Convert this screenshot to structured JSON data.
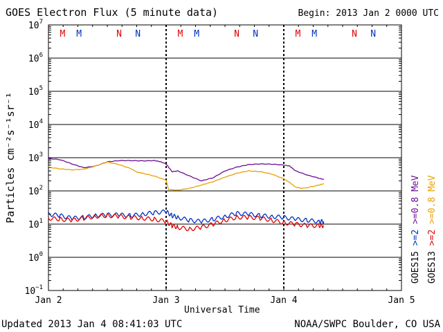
{
  "chart_data": {
    "type": "line",
    "title": "GOES Electron Flux (5 minute data)",
    "begin_label": "Begin: 2013 Jan 2 0000 UTC",
    "xlabel": "Universal Time",
    "ylabel": "Particles cm⁻²s⁻¹sr⁻¹",
    "yscale": "log",
    "ylim_exp": [
      -1,
      7
    ],
    "ytick_exps": [
      7,
      6,
      5,
      4,
      3,
      2,
      1,
      0,
      -1
    ],
    "xlim_days": [
      0,
      3
    ],
    "xticks": [
      {
        "day": 0,
        "label": "Jan 2"
      },
      {
        "day": 1,
        "label": "Jan 3"
      },
      {
        "day": 2,
        "label": "Jan 4"
      },
      {
        "day": 3,
        "label": "Jan 5"
      }
    ],
    "threshold": 1000,
    "markers": [
      {
        "day": 0.12,
        "label": "M",
        "color": "#e00000"
      },
      {
        "day": 0.26,
        "label": "M",
        "color": "#0030c0"
      },
      {
        "day": 0.6,
        "label": "N",
        "color": "#e00000"
      },
      {
        "day": 0.76,
        "label": "N",
        "color": "#0030c0"
      },
      {
        "day": 1.12,
        "label": "M",
        "color": "#e00000"
      },
      {
        "day": 1.26,
        "label": "M",
        "color": "#0030c0"
      },
      {
        "day": 1.6,
        "label": "N",
        "color": "#e00000"
      },
      {
        "day": 1.76,
        "label": "N",
        "color": "#0030c0"
      },
      {
        "day": 2.12,
        "label": "M",
        "color": "#e00000"
      },
      {
        "day": 2.26,
        "label": "M",
        "color": "#0030c0"
      },
      {
        "day": 2.6,
        "label": "N",
        "color": "#e00000"
      },
      {
        "day": 2.76,
        "label": "N",
        "color": "#0030c0"
      }
    ],
    "legend": [
      {
        "text": "GOES15",
        "color": "#000000"
      },
      {
        "text": ">=2",
        "color": "#0030c0"
      },
      {
        "text": ">=0.8 MeV",
        "color": "#6a0d91"
      },
      {
        "text": "GOES13",
        "color": "#000000"
      },
      {
        "text": ">=2",
        "color": "#e00000"
      },
      {
        "text": ">=0.8 MeV",
        "color": "#e8a000"
      }
    ],
    "legend_placement": "right",
    "series": [
      {
        "name": "GOES15 >=0.8 MeV",
        "color": "#6a0d91",
        "x": [
          0,
          0.1,
          0.2,
          0.3,
          0.4,
          0.5,
          0.6,
          0.7,
          0.8,
          0.9,
          0.95,
          1.0,
          1.05,
          1.1,
          1.2,
          1.3,
          1.4,
          1.5,
          1.6,
          1.7,
          1.8,
          1.9,
          2.0,
          2.05,
          2.1,
          2.2,
          2.3,
          2.34
        ],
        "y": [
          950,
          870,
          650,
          500,
          560,
          750,
          820,
          820,
          800,
          820,
          760,
          650,
          380,
          400,
          280,
          200,
          250,
          400,
          520,
          620,
          650,
          640,
          600,
          560,
          400,
          300,
          240,
          220
        ]
      },
      {
        "name": "GOES13 >=0.8 MeV",
        "color": "#e8a000",
        "x": [
          0,
          0.1,
          0.2,
          0.3,
          0.4,
          0.5,
          0.6,
          0.7,
          0.75,
          0.8,
          0.9,
          1.0,
          1.02,
          1.1,
          1.2,
          1.3,
          1.4,
          1.5,
          1.6,
          1.7,
          1.8,
          1.9,
          2.0,
          2.05,
          2.1,
          2.15,
          2.2,
          2.3,
          2.34
        ],
        "y": [
          520,
          460,
          430,
          450,
          560,
          740,
          620,
          470,
          370,
          340,
          280,
          210,
          110,
          105,
          120,
          150,
          190,
          260,
          340,
          400,
          380,
          320,
          230,
          180,
          130,
          120,
          125,
          150,
          165
        ]
      },
      {
        "name": "GOES15 >=2 MeV",
        "color": "#0030c0",
        "x": [
          0,
          0.1,
          0.2,
          0.3,
          0.4,
          0.5,
          0.6,
          0.7,
          0.8,
          0.9,
          1.0,
          1.05,
          1.1,
          1.2,
          1.3,
          1.4,
          1.5,
          1.6,
          1.7,
          1.8,
          1.9,
          2.0,
          2.1,
          2.2,
          2.3,
          2.34
        ],
        "y": [
          20,
          18,
          15,
          16,
          18,
          19,
          19,
          18,
          20,
          22,
          24,
          18,
          16,
          13,
          12,
          14,
          17,
          21,
          20,
          18,
          17,
          16,
          14,
          13,
          12,
          12
        ]
      },
      {
        "name": "GOES13 >=2 MeV",
        "color": "#e00000",
        "x": [
          0,
          0.1,
          0.2,
          0.3,
          0.4,
          0.5,
          0.6,
          0.7,
          0.8,
          0.9,
          1.0,
          1.05,
          1.1,
          1.2,
          1.3,
          1.4,
          1.5,
          1.6,
          1.7,
          1.8,
          1.9,
          2.0,
          2.1,
          2.2,
          2.3,
          2.34
        ],
        "y": [
          15,
          14,
          13,
          15,
          17,
          18,
          17,
          16,
          15,
          14,
          12,
          9,
          8,
          7,
          8,
          10,
          13,
          16,
          16,
          15,
          13,
          11,
          10,
          9,
          9,
          9
        ]
      }
    ]
  },
  "footer": {
    "updated": "Updated 2013 Jan  4 08:41:03 UTC",
    "source": "NOAA/SWPC Boulder, CO USA"
  }
}
